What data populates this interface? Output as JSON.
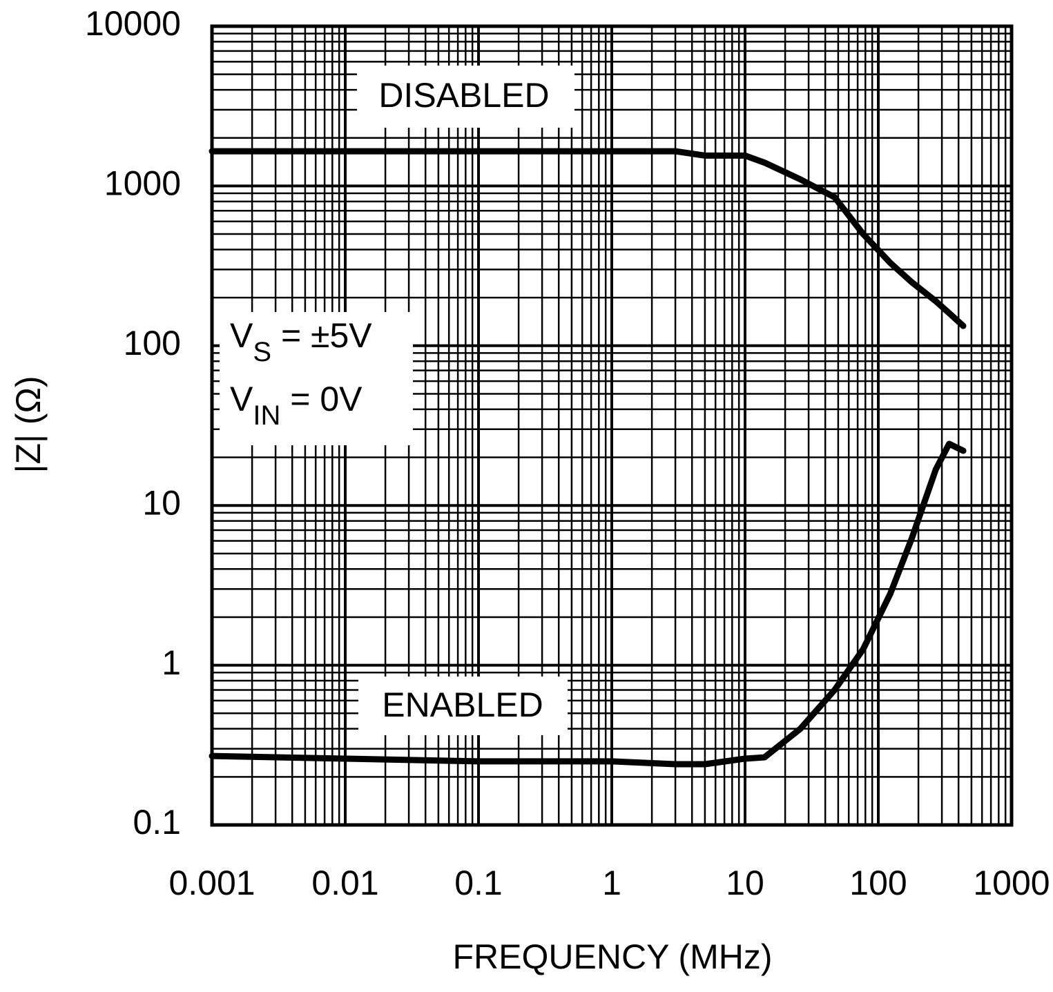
{
  "chart_data": {
    "type": "line",
    "x_label": "FREQUENCY (MHz)",
    "y_label": "|Z| (Ω)",
    "log_x": true,
    "log_y": true,
    "grid": true,
    "xlim": [
      0.001,
      1000
    ],
    "xticks": [
      0.001,
      0.01,
      0.1,
      1,
      10,
      100,
      1000
    ],
    "ylim": [
      0.1,
      10000
    ],
    "yticks": [
      0.1,
      1,
      10,
      100,
      1000,
      10000
    ],
    "x": [
      0.001,
      0.01,
      0.1,
      1,
      3,
      5,
      10,
      14,
      26,
      47,
      77,
      123,
      178,
      270,
      340,
      434
    ],
    "series": [
      {
        "name": "DISABLED",
        "color": "#000000",
        "values": [
          1650,
          1650,
          1650,
          1650,
          1650,
          1550,
          1550,
          1400,
          1100,
          850,
          500,
          330,
          250,
          190,
          160,
          133
        ]
      },
      {
        "name": "ENABLED",
        "color": "#000000",
        "values": [
          0.27,
          0.26,
          0.25,
          0.25,
          0.24,
          0.24,
          0.26,
          0.265,
          0.4,
          0.7,
          1.26,
          2.8,
          6.2,
          16.8,
          24.3,
          22
        ]
      }
    ],
    "annotations": [
      {
        "text": "V",
        "subscript": "S",
        "suffix": " = ±5V"
      },
      {
        "text": "V",
        "subscript": "IN",
        "suffix": " = 0V"
      }
    ]
  }
}
